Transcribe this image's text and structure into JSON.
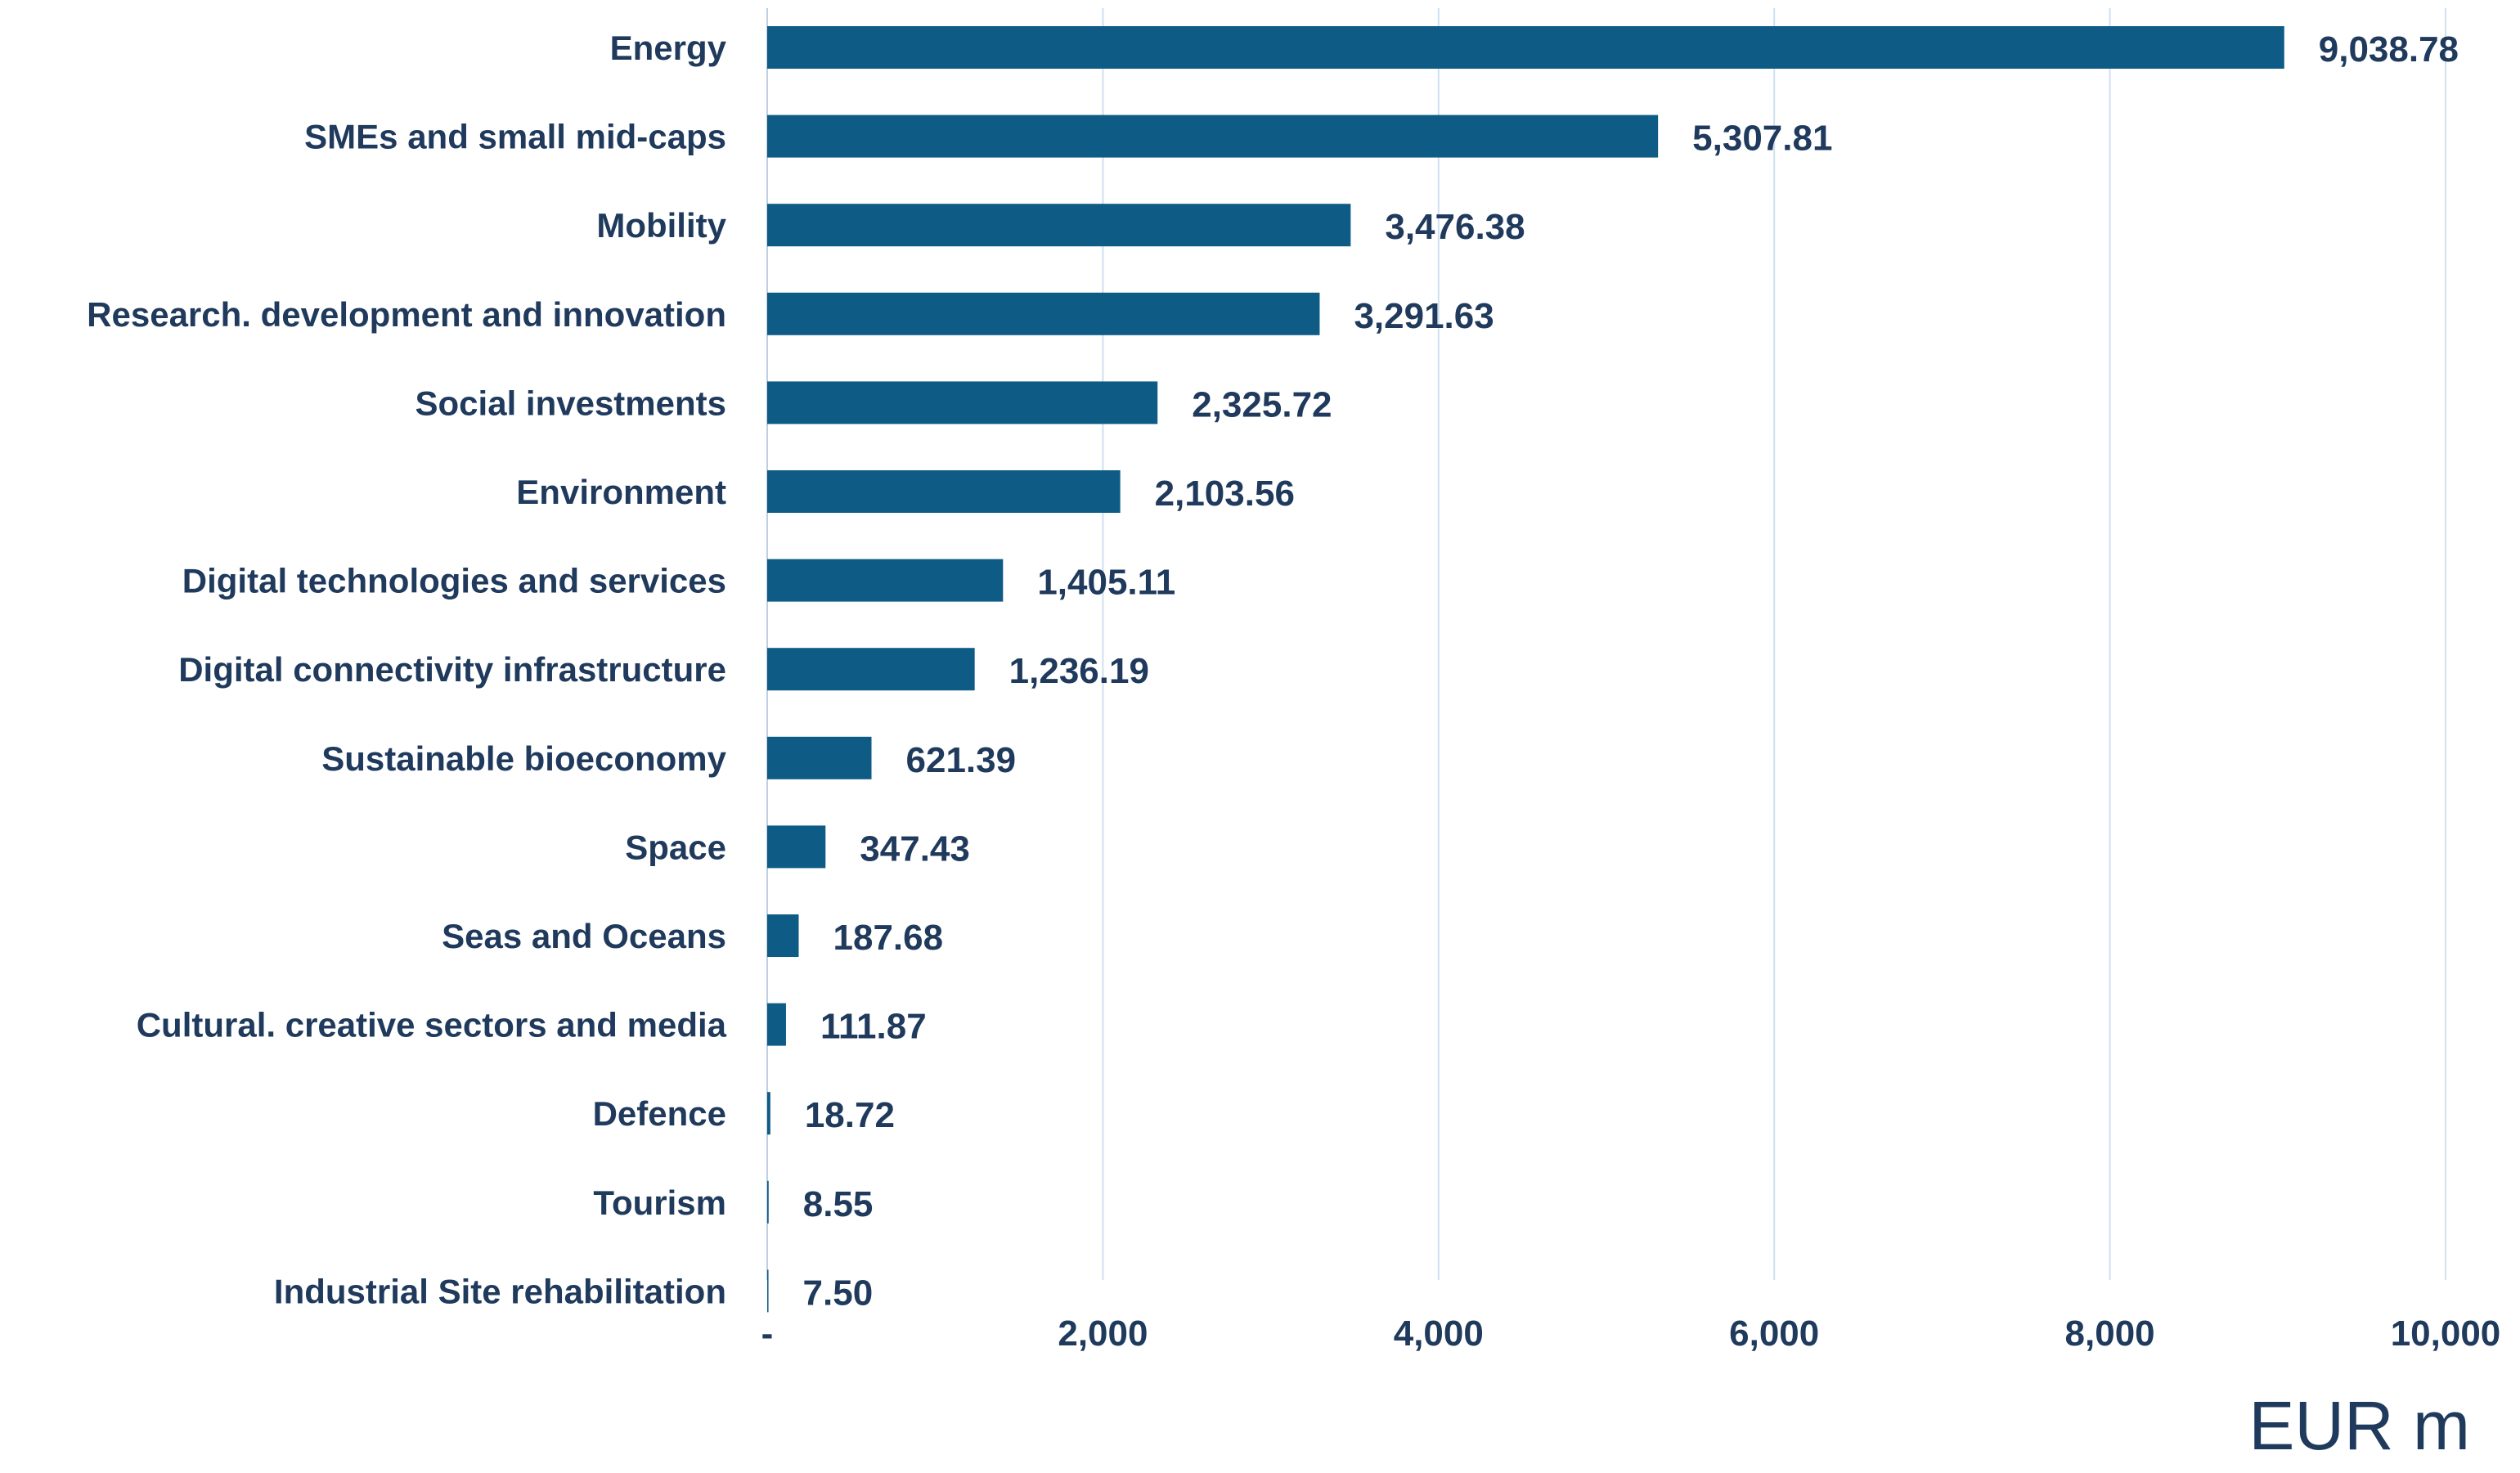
{
  "chart_data": {
    "type": "bar",
    "orientation": "horizontal",
    "categories": [
      "Energy",
      "SMEs and small mid-caps",
      "Mobility",
      "Research. development and innovation",
      "Social investments",
      "Environment",
      "Digital technologies and services",
      "Digital connectivity infrastructure",
      "Sustainable bioeconomy",
      "Space",
      "Seas and Oceans",
      "Cultural. creative sectors and media",
      "Defence",
      "Tourism",
      "Industrial Site rehabilitation"
    ],
    "values": [
      9038.78,
      5307.81,
      3476.38,
      3291.63,
      2325.72,
      2103.56,
      1405.11,
      1236.19,
      621.39,
      347.43,
      187.68,
      111.87,
      18.72,
      8.55,
      7.5
    ],
    "value_labels": [
      "9,038.78",
      "5,307.81",
      "3,476.38",
      "3,291.63",
      "2,325.72",
      "2,103.56",
      "1,405.11",
      "1,236.19",
      "621.39",
      "347.43",
      "187.68",
      "111.87",
      "18.72",
      "8.55",
      "7.50"
    ],
    "xlim": [
      0,
      10000
    ],
    "xticks": [
      0,
      2000,
      4000,
      6000,
      8000,
      10000
    ],
    "xtick_labels": [
      "-",
      "2,000",
      "4,000",
      "6,000",
      "8,000",
      "10,000"
    ],
    "xlabel": "EUR m",
    "ylabel": "",
    "title": "",
    "grid": "vertical",
    "bar_color": "#0e5b86",
    "text_color": "#1f3a5c",
    "grid_color": "#cfe0f0"
  }
}
